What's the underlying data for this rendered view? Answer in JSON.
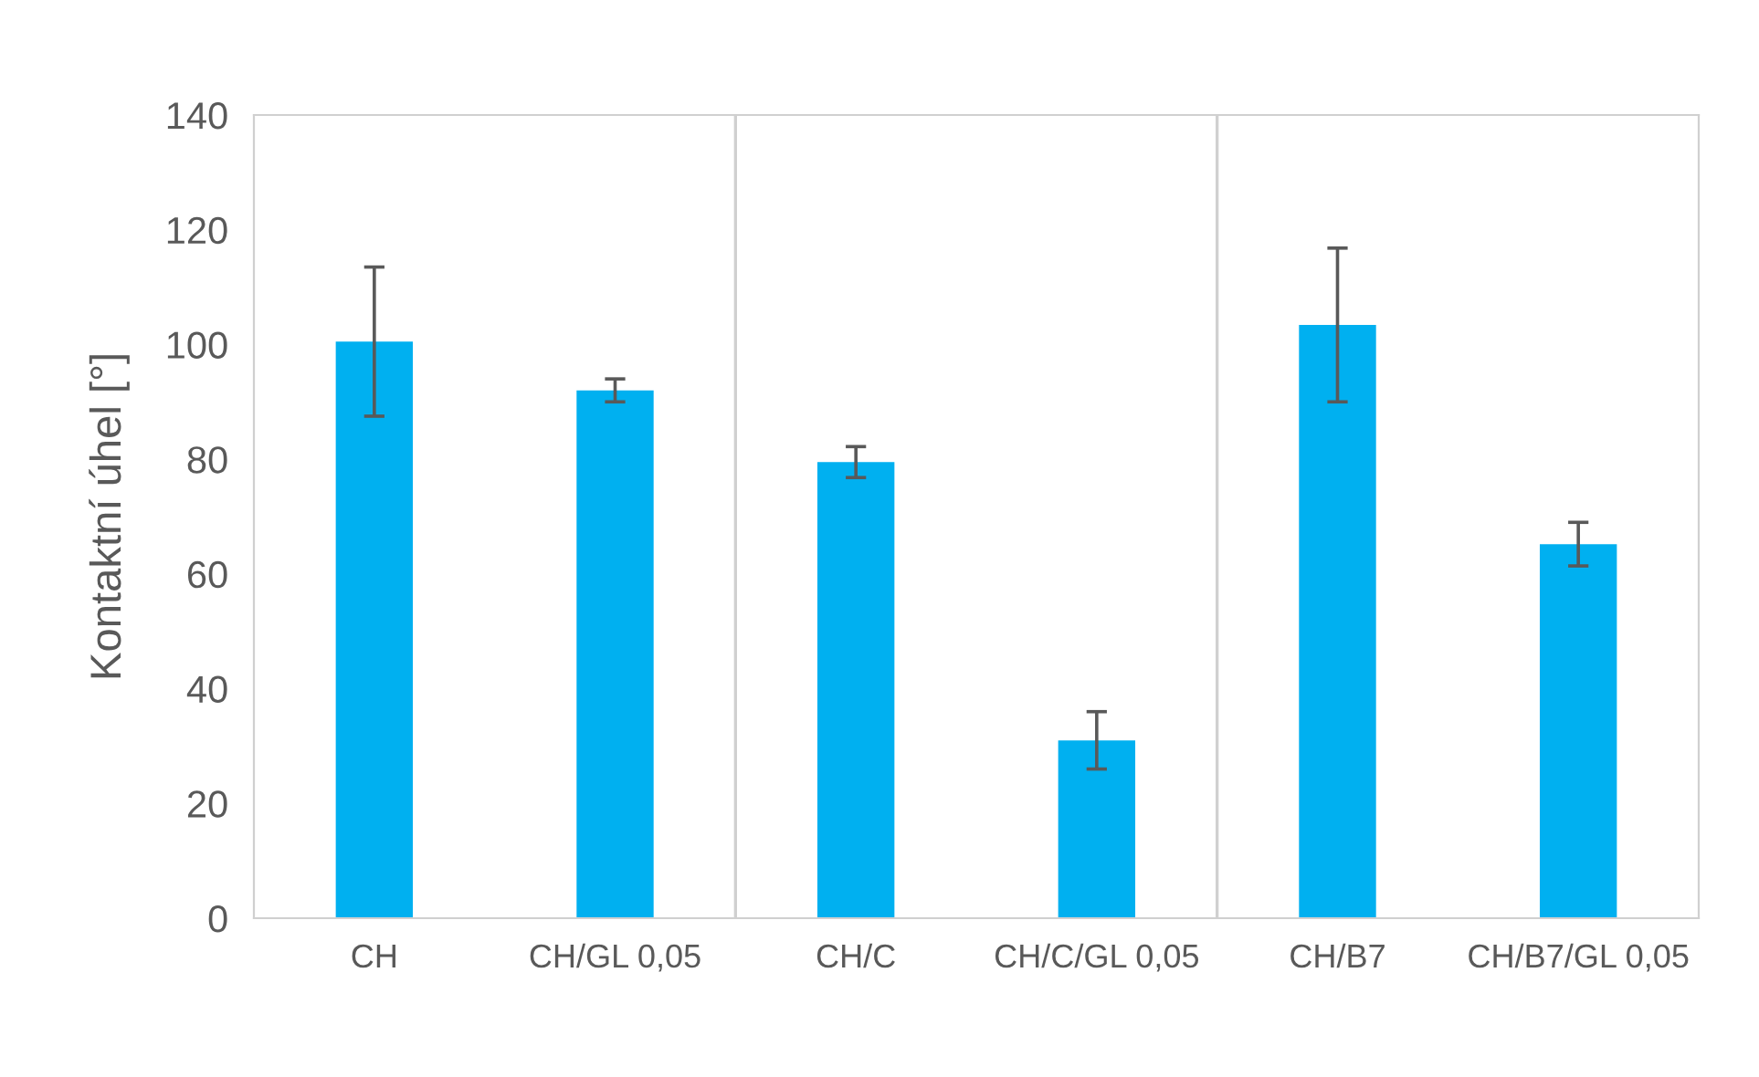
{
  "chart_data": {
    "type": "bar",
    "ylabel": "Kontaktní úhel [°]",
    "categories": [
      "CH",
      "CH/GL 0,05",
      "CH/C",
      "CH/C/GL 0,05",
      "CH/B7",
      "CH/B7/GL 0,05"
    ],
    "values": [
      100.5,
      92,
      79.5,
      31,
      103.4,
      65.2
    ],
    "errors": [
      13,
      2,
      2.7,
      5,
      13.4,
      3.8
    ],
    "color": "#00b0f0",
    "ylim": [
      0,
      140
    ],
    "yticks": [
      0,
      20,
      40,
      60,
      80,
      100,
      120,
      140
    ],
    "grid": false,
    "legend": false
  }
}
